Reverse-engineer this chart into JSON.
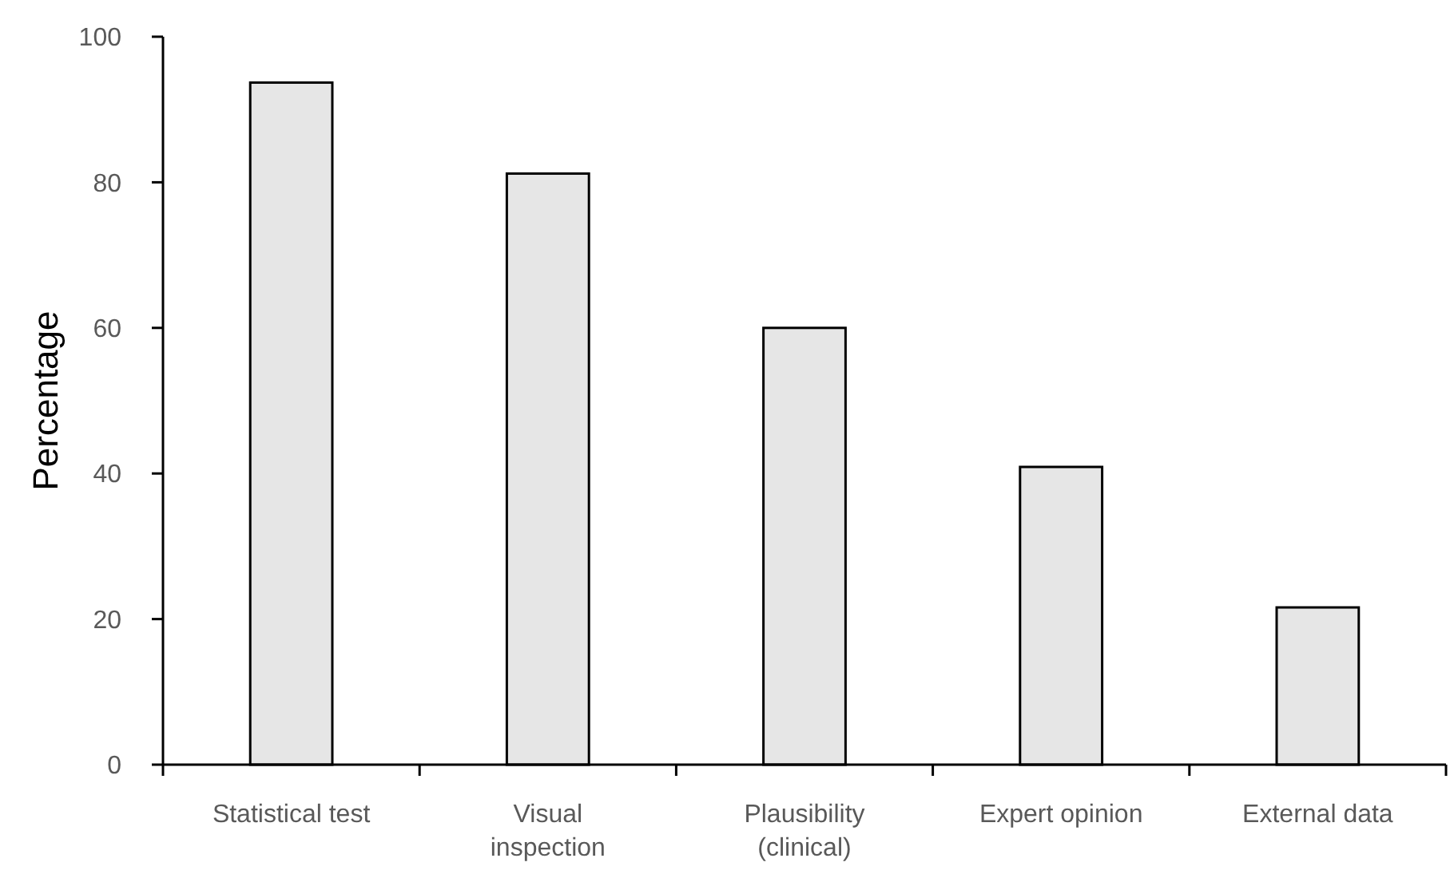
{
  "chart_data": {
    "type": "bar",
    "ylabel": "Percentage",
    "categories": [
      "Statistical test",
      "Visual inspection",
      "Plausibility (clinical)",
      "Expert opinion",
      "External data"
    ],
    "values": [
      93.7,
      81.2,
      60.0,
      40.9,
      21.6
    ],
    "color": "#e6e6e6",
    "ylim": [
      0,
      100
    ],
    "yticks": [
      0,
      20,
      40,
      60,
      80,
      100
    ],
    "grid": false
  }
}
